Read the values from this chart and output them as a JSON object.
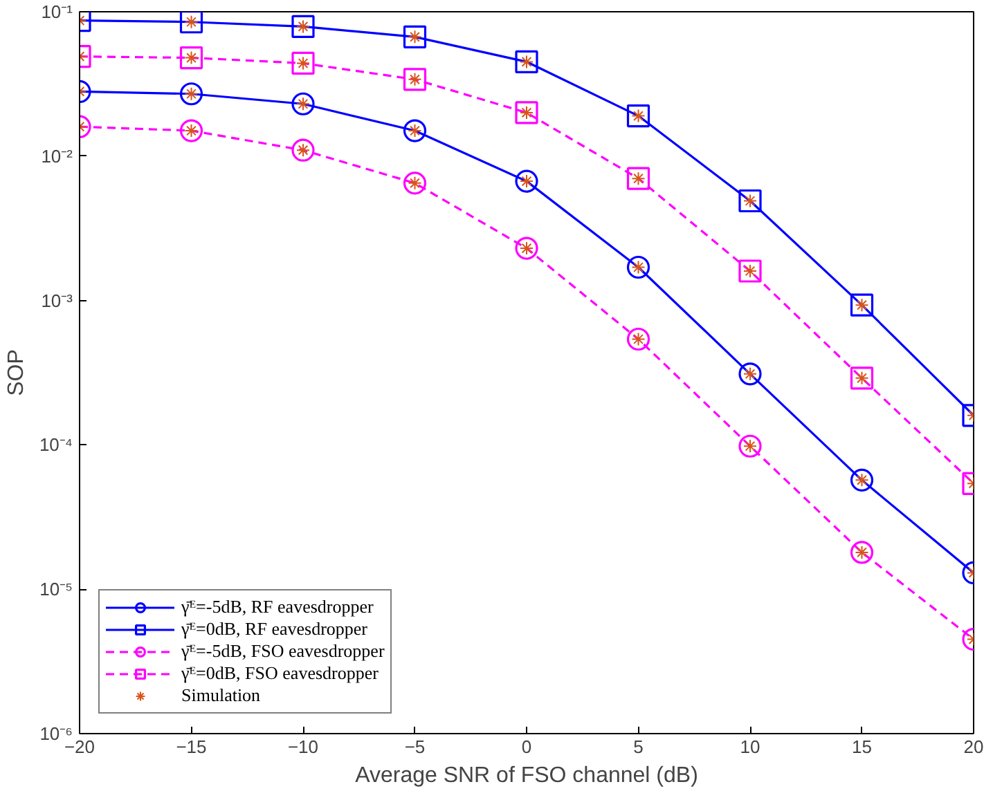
{
  "chart_data": {
    "type": "line",
    "xlabel": "Average SNR of FSO channel (dB)",
    "ylabel": "SOP",
    "log": "y",
    "grid": false,
    "legend": "bottom left",
    "x": [
      -20,
      -15,
      -10,
      -5,
      0,
      5,
      10,
      15,
      20
    ],
    "xlim": [
      -20,
      20
    ],
    "xticks": [
      {
        "value": -20,
        "label": "−20"
      },
      {
        "value": -15,
        "label": "−15"
      },
      {
        "value": -10,
        "label": "−10"
      },
      {
        "value": -5,
        "label": "−5"
      },
      0,
      5,
      10,
      15,
      20
    ],
    "ylim": [
      1e-06,
      0.1
    ],
    "yticks": [
      {
        "value": 1e-06,
        "label": "10⁻⁶"
      },
      {
        "value": 1e-05,
        "label": "10⁻⁵"
      },
      {
        "value": 0.0001,
        "label": "10⁻⁴"
      },
      {
        "value": 0.001,
        "label": "10⁻³"
      },
      {
        "value": 0.01,
        "label": "10⁻²"
      },
      {
        "value": 0.1,
        "label": "10⁻¹"
      }
    ],
    "series": [
      {
        "name": "γ̄ᴱ=-5dB, RF eavesdropper",
        "color": "#0000ff",
        "marker": "circle",
        "line_style": "solid",
        "values": [
          0.028,
          0.027,
          0.023,
          0.015,
          0.0067,
          0.0017,
          0.00031,
          5.7e-05,
          1.3e-05
        ]
      },
      {
        "name": "γ̄ᴱ=0dB, RF eavesdropper",
        "color": "#0000ff",
        "marker": "square",
        "line_style": "solid",
        "values": [
          0.087,
          0.085,
          0.079,
          0.067,
          0.045,
          0.019,
          0.0049,
          0.00093,
          0.00016
        ]
      },
      {
        "name": "γ̄ᴱ=-5dB, FSO eavesdropper",
        "color": "#ff00ff",
        "marker": "circle",
        "line_style": "dashed",
        "values": [
          0.016,
          0.015,
          0.011,
          0.0065,
          0.0023,
          0.00054,
          9.8e-05,
          1.8e-05,
          4.5e-06
        ]
      },
      {
        "name": "γ̄ᴱ=0dB, FSO eavesdropper",
        "color": "#ff00ff",
        "marker": "square",
        "line_style": "dashed",
        "values": [
          0.049,
          0.048,
          0.044,
          0.034,
          0.02,
          0.007,
          0.0016,
          0.00029,
          5.4e-05
        ]
      },
      {
        "name": "Simulation",
        "type": "scatter",
        "color": "#d95319",
        "marker": "cross",
        "x": [
          -20,
          -15,
          -10,
          -5,
          0,
          5,
          10,
          15,
          20,
          -20,
          -15,
          -10,
          -5,
          0,
          5,
          10,
          15,
          20,
          -20,
          -15,
          -10,
          -5,
          0,
          5,
          10,
          15,
          20,
          -20,
          -15,
          -10,
          -5,
          0,
          5,
          10,
          15,
          20
        ],
        "values": [
          0.028,
          0.027,
          0.023,
          0.015,
          0.0067,
          0.0017,
          0.00031,
          5.7e-05,
          1.3e-05,
          0.087,
          0.085,
          0.079,
          0.067,
          0.045,
          0.019,
          0.0049,
          0.00093,
          0.00016,
          0.016,
          0.015,
          0.011,
          0.0065,
          0.0023,
          0.00054,
          9.8e-05,
          1.8e-05,
          4.5e-06,
          0.049,
          0.048,
          0.044,
          0.034,
          0.02,
          0.007,
          0.0016,
          0.00029,
          5.4e-05
        ]
      }
    ]
  }
}
